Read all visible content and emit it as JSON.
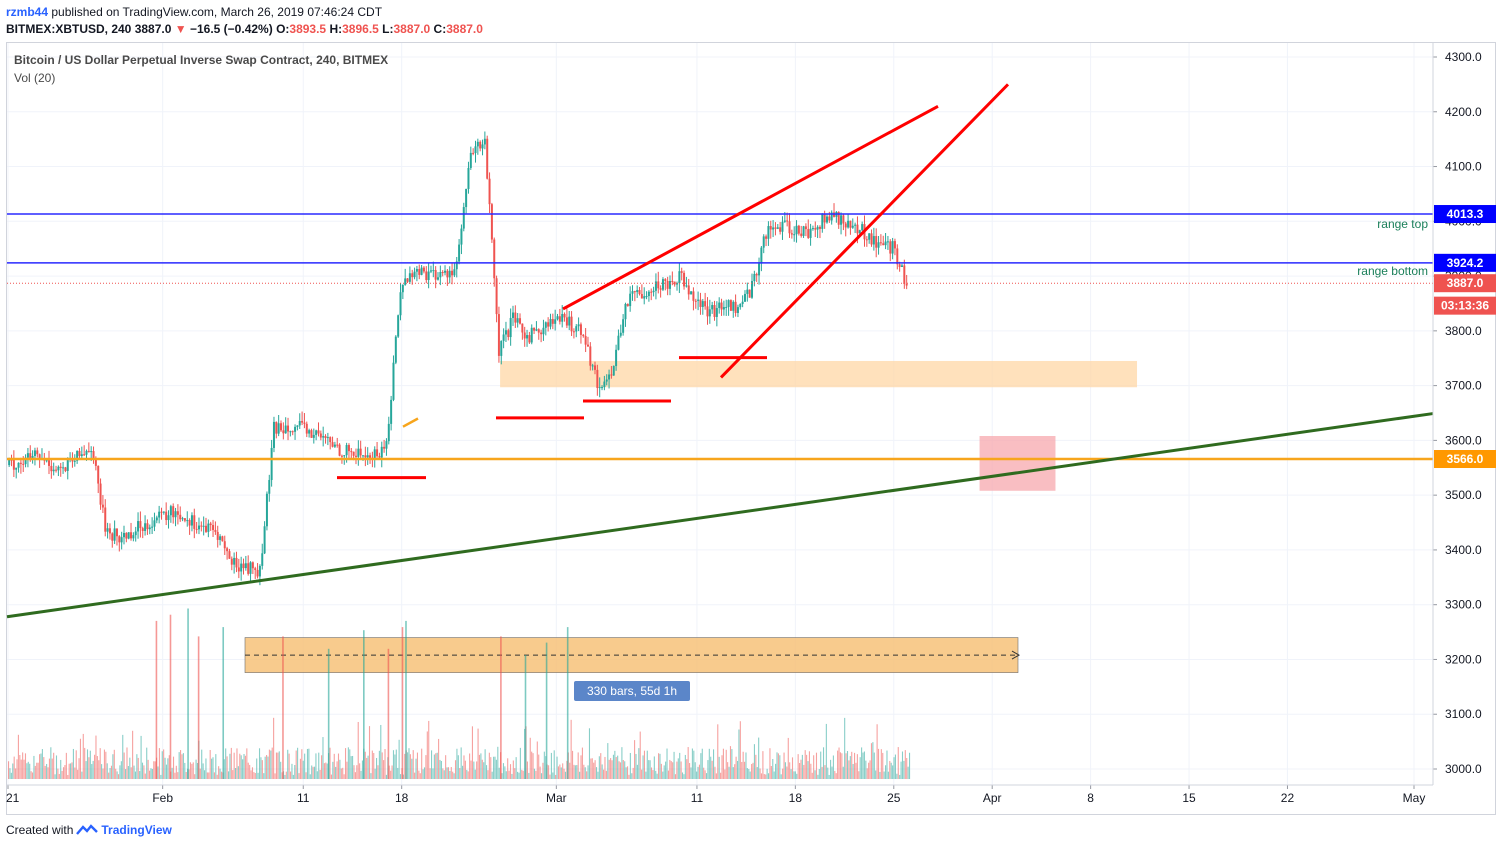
{
  "header": {
    "author": "rzmb44",
    "published": "published on TradingView.com, March 26, 2019 07:46:24 CDT"
  },
  "ohlc": {
    "symbol": "BITMEX:XBTUSD, 240",
    "last": "3887.0",
    "change": "−16.5 (−0.42%)",
    "o_label": "O:",
    "o": "3893.5",
    "h_label": "H:",
    "h": "3896.5",
    "l_label": "L:",
    "l": "3887.0",
    "c_label": "C:",
    "c": "3887.0"
  },
  "legend": {
    "title": "Bitcoin / US Dollar Perpetual Inverse Swap Contract, 240, BITMEX",
    "volume": "Vol (20)"
  },
  "footer": {
    "created_with": "Created with",
    "brand": "TradingView"
  },
  "colors": {
    "up": "#26a69a",
    "down": "#ef5350",
    "blue_line": "#2a2aff",
    "orange": "#f7a51c",
    "green_trend": "#2f6b1f",
    "red_draw": "#ff0000",
    "label_blue": "#0000ff",
    "label_red": "#ef5350",
    "label_orange": "#ff9800"
  },
  "chart_data": {
    "type": "candlestick",
    "title": "Bitcoin / US Dollar Perpetual Inverse Swap Contract, 240, BITMEX",
    "symbol": "BITMEX:XBTUSD",
    "timeframe": "240",
    "ylim": [
      2970,
      4320
    ],
    "y_ticks": [
      "4300.0",
      "4200.0",
      "4100.0",
      "4000.0",
      "3900.0",
      "3800.0",
      "3700.0",
      "3600.0",
      "3500.0",
      "3400.0",
      "3300.0",
      "3200.0",
      "3100.0",
      "3000.0"
    ],
    "x_tick_labels": [
      "21",
      "Feb",
      "11",
      "18",
      "Mar",
      "11",
      "18",
      "25",
      "Apr",
      "8",
      "15",
      "22",
      "May"
    ],
    "x_range": [
      "2019-01-21",
      "2019-05-01"
    ],
    "grid": true,
    "price_labels": [
      {
        "text": "4013.3",
        "value": 4013.3,
        "style": "blue"
      },
      {
        "text": "3924.2",
        "value": 3924.2,
        "style": "blue"
      },
      {
        "text": "3887.0",
        "value": 3887.0,
        "style": "red"
      },
      {
        "text": "03:13:36",
        "value": 3846,
        "style": "red"
      },
      {
        "text": "3566.0",
        "value": 3566.0,
        "style": "orange"
      }
    ],
    "horizontal_lines": [
      {
        "value": 4013.3,
        "label": "range top",
        "color": "blue"
      },
      {
        "value": 3924.2,
        "label": "range bottom",
        "color": "blue"
      },
      {
        "value": 3566.0,
        "label": "",
        "color": "orange"
      }
    ],
    "measure": {
      "label": "330 bars, 55d 1h",
      "from": "2019-01-31",
      "to": "2019-03-30"
    },
    "price_path": [
      [
        "2019-01-21",
        3555
      ],
      [
        "2019-01-22",
        3560
      ],
      [
        "2019-01-23",
        3570
      ],
      [
        "2019-01-25",
        3545
      ],
      [
        "2019-01-27",
        3590
      ],
      [
        "2019-01-28",
        3440
      ],
      [
        "2019-01-29",
        3420
      ],
      [
        "2019-01-31",
        3450
      ],
      [
        "2019-02-02",
        3470
      ],
      [
        "2019-02-04",
        3440
      ],
      [
        "2019-02-05",
        3430
      ],
      [
        "2019-02-06",
        3375
      ],
      [
        "2019-02-07",
        3370
      ],
      [
        "2019-02-08",
        3360
      ],
      [
        "2019-02-09",
        3620
      ],
      [
        "2019-02-10",
        3630
      ],
      [
        "2019-02-12",
        3610
      ],
      [
        "2019-02-14",
        3580
      ],
      [
        "2019-02-16",
        3570
      ],
      [
        "2019-02-17",
        3590
      ],
      [
        "2019-02-18",
        3880
      ],
      [
        "2019-02-19",
        3910
      ],
      [
        "2019-02-21",
        3900
      ],
      [
        "2019-02-22",
        3920
      ],
      [
        "2019-02-23",
        4120
      ],
      [
        "2019-02-24",
        4150
      ],
      [
        "2019-02-25",
        3760
      ],
      [
        "2019-02-26",
        3820
      ],
      [
        "2019-02-27",
        3790
      ],
      [
        "2019-03-01",
        3820
      ],
      [
        "2019-03-02",
        3815
      ],
      [
        "2019-03-03",
        3800
      ],
      [
        "2019-03-04",
        3700
      ],
      [
        "2019-03-05",
        3720
      ],
      [
        "2019-03-06",
        3850
      ],
      [
        "2019-03-07",
        3870
      ],
      [
        "2019-03-08",
        3880
      ],
      [
        "2019-03-09",
        3890
      ],
      [
        "2019-03-10",
        3900
      ],
      [
        "2019-03-11",
        3860
      ],
      [
        "2019-03-12",
        3830
      ],
      [
        "2019-03-13",
        3850
      ],
      [
        "2019-03-14",
        3840
      ],
      [
        "2019-03-15",
        3880
      ],
      [
        "2019-03-16",
        3980
      ],
      [
        "2019-03-17",
        3990
      ],
      [
        "2019-03-19",
        3980
      ],
      [
        "2019-03-20",
        4000
      ],
      [
        "2019-03-21",
        4010
      ],
      [
        "2019-03-22",
        3990
      ],
      [
        "2019-03-23",
        3980
      ],
      [
        "2019-03-24",
        3960
      ],
      [
        "2019-03-25",
        3950
      ],
      [
        "2019-03-26",
        3887
      ]
    ],
    "volume": {
      "label": "Vol (20)"
    }
  }
}
